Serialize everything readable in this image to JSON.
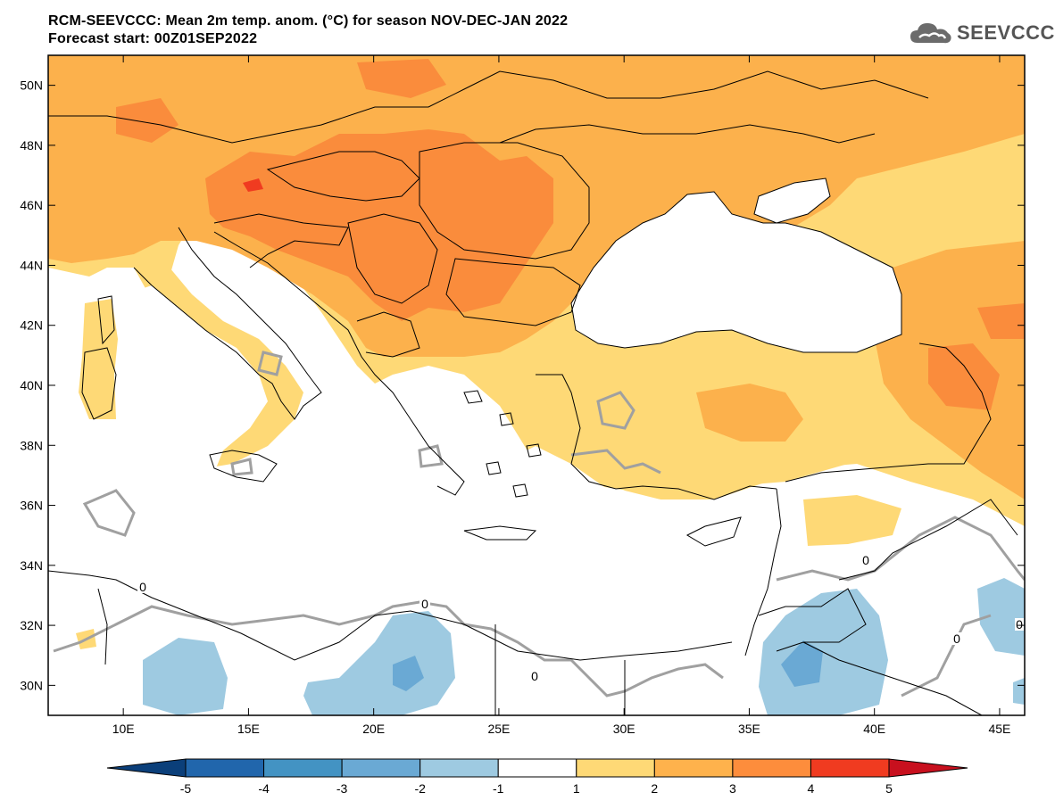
{
  "header": {
    "title_line1": "RCM-SEEVCCC: Mean 2m temp. anom. (°C) for season NOV-DEC-JAN 2022",
    "title_line2": "Forecast start: 00Z01SEP2022"
  },
  "logo": {
    "text": "SEEVCCC",
    "icon": "cloud-icon"
  },
  "map": {
    "lon_range": [
      7,
      46
    ],
    "lat_range": [
      29,
      51
    ],
    "lat_ticks": [
      {
        "value": 30,
        "label": "30N"
      },
      {
        "value": 32,
        "label": "32N"
      },
      {
        "value": 34,
        "label": "34N"
      },
      {
        "value": 36,
        "label": "36N"
      },
      {
        "value": 38,
        "label": "38N"
      },
      {
        "value": 40,
        "label": "40N"
      },
      {
        "value": 42,
        "label": "42N"
      },
      {
        "value": 44,
        "label": "44N"
      },
      {
        "value": 46,
        "label": "46N"
      },
      {
        "value": 48,
        "label": "48N"
      },
      {
        "value": 50,
        "label": "50N"
      }
    ],
    "lon_ticks": [
      {
        "value": 10,
        "label": "10E"
      },
      {
        "value": 15,
        "label": "15E"
      },
      {
        "value": 20,
        "label": "20E"
      },
      {
        "value": 25,
        "label": "25E"
      },
      {
        "value": 30,
        "label": "30E"
      },
      {
        "value": 35,
        "label": "35E"
      },
      {
        "value": 40,
        "label": "40E"
      },
      {
        "value": 45,
        "label": "45E"
      }
    ],
    "contour_labels": [
      "0",
      "0",
      "0",
      "0",
      "0",
      "0"
    ]
  },
  "colorbar": {
    "labels": [
      "-5",
      "-4",
      "-3",
      "-2",
      "-1",
      "1",
      "2",
      "3",
      "4",
      "5"
    ],
    "colors": {
      "below_min": "#0b3f7a",
      "c1": "#2166ac",
      "c2": "#4393c3",
      "c3": "#6aa9d4",
      "c4": "#9ecae1",
      "c5": "#ffffff",
      "c6": "#fed976",
      "c7": "#feb24c",
      "c8": "#fd8d3c",
      "c9": "#f03b20",
      "above_max": "#c8101e"
    }
  },
  "palette": {
    "anom_1_2": "#fed976",
    "anom_2_3": "#fcb14c",
    "anom_3_4": "#fa8c3c",
    "anom_4_5": "#f03b20",
    "anom_m1_m2": "#9ecae1",
    "anom_m2_m3": "#6aa9d4",
    "contour_zero": "#a0a0a0",
    "border": "#000000"
  }
}
